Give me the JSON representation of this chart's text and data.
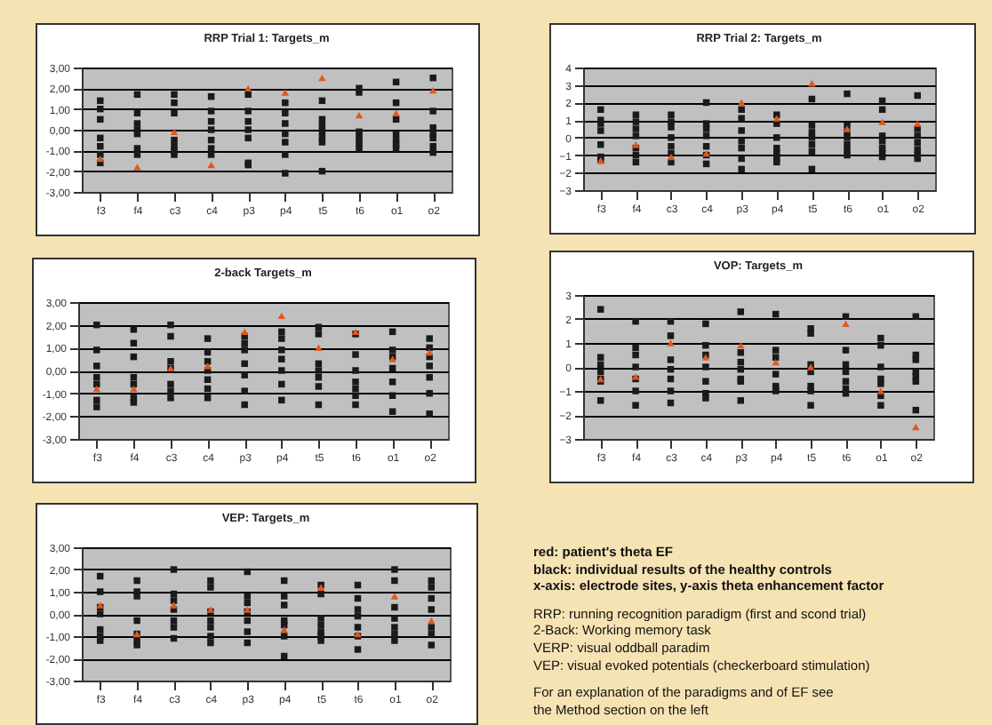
{
  "chart_data": [
    {
      "type": "scatter",
      "title": "RRP Trial 1: Targets_m",
      "categories": [
        "f3",
        "f4",
        "c3",
        "c4",
        "p3",
        "p4",
        "t5",
        "t6",
        "o1",
        "o2"
      ],
      "ylim": [
        -3,
        3
      ],
      "yticks": [
        {
          "value": -3,
          "label": "-3,00"
        },
        {
          "value": -2,
          "label": "-2,00"
        },
        {
          "value": -1,
          "label": "-1,00"
        },
        {
          "value": 0,
          "label": "0,00"
        },
        {
          "value": 1,
          "label": "1,00"
        },
        {
          "value": 2,
          "label": "2,00"
        },
        {
          "value": 3,
          "label": "3,00"
        }
      ],
      "grid": "y",
      "series": [
        {
          "color": "#1a1a1a",
          "marker": "square",
          "x": [
            "f3",
            "f3",
            "f3",
            "f3",
            "f3",
            "f3",
            "f3",
            "f4",
            "f4",
            "f4",
            "f4",
            "f4",
            "f4",
            "f4",
            "c3",
            "c3",
            "c3",
            "c3",
            "c3",
            "c3",
            "c3",
            "c4",
            "c4",
            "c4",
            "c4",
            "c4",
            "c4",
            "c4",
            "p3",
            "p3",
            "p3",
            "p3",
            "p3",
            "p3",
            "p3",
            "p4",
            "p4",
            "p4",
            "p4",
            "p4",
            "p4",
            "p4",
            "t5",
            "t5",
            "t5",
            "t5",
            "t5",
            "t5",
            "t5",
            "t6",
            "t6",
            "t6",
            "t6",
            "t6",
            "t6",
            "t6",
            "o1",
            "o1",
            "o1",
            "o1",
            "o1",
            "o1",
            "o1",
            "o2",
            "o2",
            "o2",
            "o2",
            "o2",
            "o2",
            "o2"
          ],
          "values": [
            1.4,
            1.0,
            0.5,
            -0.4,
            -0.8,
            -1.2,
            -1.6,
            1.7,
            0.8,
            0.3,
            0.0,
            -0.2,
            -0.9,
            -1.2,
            1.7,
            1.3,
            0.8,
            -0.5,
            -0.8,
            -1.0,
            -1.2,
            1.6,
            0.9,
            0.4,
            0.0,
            -0.5,
            -0.9,
            -1.2,
            1.7,
            0.9,
            0.4,
            0.0,
            -0.4,
            -1.6,
            -1.7,
            1.3,
            0.8,
            0.3,
            -0.2,
            -0.6,
            -1.2,
            -2.1,
            1.4,
            0.5,
            0.2,
            -0.1,
            -0.4,
            -0.6,
            -2.0,
            2.0,
            1.8,
            -0.1,
            -0.3,
            -0.5,
            -0.7,
            -0.9,
            2.3,
            1.3,
            0.5,
            -0.2,
            -0.5,
            -0.7,
            -0.9,
            2.5,
            0.9,
            0.1,
            -0.2,
            -0.4,
            -0.8,
            -1.1
          ]
        },
        {
          "color": "#e0581c",
          "marker": "triangle",
          "values": [
            -1.4,
            -1.8,
            -0.1,
            -1.7,
            2.0,
            1.8,
            2.5,
            0.7,
            0.8,
            1.9
          ]
        }
      ]
    },
    {
      "type": "scatter",
      "title": "RRP Trial 2: Targets_m",
      "categories": [
        "f3",
        "f4",
        "c3",
        "c4",
        "p3",
        "p4",
        "t5",
        "t6",
        "o1",
        "o2"
      ],
      "ylim": [
        -3,
        4
      ],
      "yticks": [
        -3,
        -2,
        -1,
        0,
        1,
        2,
        3,
        4
      ],
      "grid": "y",
      "series": [
        {
          "color": "#1a1a1a",
          "marker": "square",
          "x": [
            "f3",
            "f3",
            "f3",
            "f3",
            "f3",
            "f3",
            "f3",
            "f4",
            "f4",
            "f4",
            "f4",
            "f4",
            "f4",
            "f4",
            "c3",
            "c3",
            "c3",
            "c3",
            "c3",
            "c3",
            "c3",
            "c4",
            "c4",
            "c4",
            "c4",
            "c4",
            "c4",
            "c4",
            "p3",
            "p3",
            "p3",
            "p3",
            "p3",
            "p3",
            "p3",
            "p4",
            "p4",
            "p4",
            "p4",
            "p4",
            "p4",
            "p4",
            "t5",
            "t5",
            "t5",
            "t5",
            "t5",
            "t5",
            "t5",
            "t6",
            "t6",
            "t6",
            "t6",
            "t6",
            "t6",
            "t6",
            "o1",
            "o1",
            "o1",
            "o1",
            "o1",
            "o1",
            "o1",
            "o2",
            "o2",
            "o2",
            "o2",
            "o2",
            "o2",
            "o2"
          ],
          "values": [
            1.6,
            1.0,
            0.8,
            0.4,
            -0.4,
            -1.1,
            -1.3,
            1.3,
            0.9,
            0.5,
            0.1,
            -0.6,
            -1.0,
            -1.4,
            1.3,
            0.9,
            0.6,
            0.0,
            -0.5,
            -0.9,
            -1.4,
            2.0,
            0.8,
            0.5,
            0.1,
            -0.5,
            -1.0,
            -1.5,
            1.6,
            1.1,
            0.4,
            -0.2,
            -0.6,
            -1.2,
            -1.8,
            1.3,
            0.8,
            0.0,
            -0.6,
            -0.9,
            -1.2,
            -1.4,
            2.2,
            0.7,
            0.3,
            0.0,
            -0.4,
            -0.8,
            -1.8,
            2.5,
            0.7,
            0.3,
            0.0,
            -0.4,
            -0.7,
            -1.0,
            2.1,
            1.6,
            0.1,
            -0.2,
            -0.6,
            -0.9,
            -1.1,
            2.4,
            0.5,
            0.1,
            -0.3,
            -0.7,
            -1.0,
            -1.2
          ]
        },
        {
          "color": "#e0581c",
          "marker": "triangle",
          "values": [
            -1.3,
            -0.4,
            -1.1,
            -0.9,
            2.0,
            1.1,
            3.1,
            0.5,
            0.9,
            0.8
          ]
        }
      ]
    },
    {
      "type": "scatter",
      "title": "2-back Targets_m",
      "categories": [
        "f3",
        "f4",
        "c3",
        "c4",
        "p3",
        "p4",
        "t5",
        "t6",
        "o1",
        "o2"
      ],
      "ylim": [
        -3,
        3
      ],
      "yticks": [
        {
          "value": -3,
          "label": "-3,00"
        },
        {
          "value": -2,
          "label": "-2,00"
        },
        {
          "value": -1,
          "label": "-1,00"
        },
        {
          "value": 0,
          "label": "0,00"
        },
        {
          "value": 1,
          "label": "1,00"
        },
        {
          "value": 2,
          "label": "2,00"
        },
        {
          "value": 3,
          "label": "3,00"
        }
      ],
      "grid": "y",
      "series": [
        {
          "color": "#1a1a1a",
          "marker": "square",
          "x": [
            "f3",
            "f3",
            "f3",
            "f3",
            "f3",
            "f3",
            "f3",
            "f4",
            "f4",
            "f4",
            "f4",
            "f4",
            "f4",
            "f4",
            "c3",
            "c3",
            "c3",
            "c3",
            "c3",
            "c3",
            "c3",
            "c4",
            "c4",
            "c4",
            "c4",
            "c4",
            "c4",
            "c4",
            "p3",
            "p3",
            "p3",
            "p3",
            "p3",
            "p3",
            "p3",
            "p4",
            "p4",
            "p4",
            "p4",
            "p4",
            "p4",
            "p4",
            "t5",
            "t5",
            "t5",
            "t5",
            "t5",
            "t5",
            "t5",
            "t6",
            "t6",
            "t6",
            "t6",
            "t6",
            "t6",
            "t6",
            "o1",
            "o1",
            "o1",
            "o1",
            "o1",
            "o1",
            "o1",
            "o2",
            "o2",
            "o2",
            "o2",
            "o2",
            "o2",
            "o2"
          ],
          "values": [
            2.0,
            0.9,
            0.2,
            -0.3,
            -0.6,
            -1.3,
            -1.6,
            1.8,
            1.2,
            0.6,
            -0.3,
            -0.6,
            -1.2,
            -1.4,
            2.0,
            1.5,
            0.4,
            0.1,
            -0.6,
            -0.9,
            -1.2,
            1.4,
            0.8,
            0.4,
            0.0,
            -0.4,
            -0.8,
            -1.2,
            1.5,
            1.2,
            0.9,
            0.3,
            -0.2,
            -0.9,
            -1.5,
            1.7,
            1.4,
            0.9,
            0.5,
            0.0,
            -0.6,
            -1.3,
            1.9,
            1.6,
            0.3,
            0.0,
            -0.3,
            -0.7,
            -1.5,
            1.6,
            0.7,
            0.0,
            -0.5,
            -0.8,
            -1.1,
            -1.5,
            1.7,
            0.9,
            0.6,
            0.1,
            -0.5,
            -1.1,
            -1.8,
            1.4,
            1.0,
            0.6,
            0.2,
            -0.3,
            -1.0,
            -1.9
          ]
        },
        {
          "color": "#e0581c",
          "marker": "triangle",
          "values": [
            -0.8,
            -0.8,
            0.1,
            0.2,
            1.7,
            2.4,
            1.0,
            1.7,
            0.5,
            0.8
          ]
        }
      ]
    },
    {
      "type": "scatter",
      "title": "VOP: Targets_m",
      "categories": [
        "f3",
        "f4",
        "c3",
        "c4",
        "p3",
        "p4",
        "t5",
        "t6",
        "o1",
        "o2"
      ],
      "ylim": [
        -3,
        3
      ],
      "yticks": [
        -3,
        -2,
        -1,
        0,
        1,
        2,
        3
      ],
      "grid": "y",
      "series": [
        {
          "color": "#1a1a1a",
          "marker": "square",
          "x": [
            "f3",
            "f3",
            "f3",
            "f3",
            "f3",
            "f3",
            "f3",
            "f4",
            "f4",
            "f4",
            "f4",
            "f4",
            "f4",
            "f4",
            "c3",
            "c3",
            "c3",
            "c3",
            "c3",
            "c3",
            "c3",
            "c4",
            "c4",
            "c4",
            "c4",
            "c4",
            "c4",
            "c4",
            "p3",
            "p3",
            "p3",
            "p3",
            "p3",
            "p3",
            "p3",
            "p4",
            "p4",
            "p4",
            "p4",
            "p4",
            "p4",
            "p4",
            "t5",
            "t5",
            "t5",
            "t5",
            "t5",
            "t5",
            "t5",
            "t6",
            "t6",
            "t6",
            "t6",
            "t6",
            "t6",
            "t6",
            "o1",
            "o1",
            "o1",
            "o1",
            "o1",
            "o1",
            "o1",
            "o2",
            "o2",
            "o2",
            "o2",
            "o2",
            "o2",
            "o2"
          ],
          "values": [
            2.4,
            0.4,
            0.1,
            -0.2,
            -0.5,
            -0.6,
            -1.4,
            1.9,
            0.8,
            0.5,
            0.0,
            -0.5,
            -1.0,
            -1.6,
            1.9,
            1.3,
            0.3,
            -0.1,
            -0.5,
            -1.0,
            -1.5,
            1.8,
            0.9,
            0.5,
            0.0,
            -0.6,
            -1.1,
            -1.3,
            2.3,
            0.6,
            0.2,
            -0.1,
            -0.5,
            -0.6,
            -1.4,
            2.2,
            0.7,
            0.4,
            -0.3,
            -0.8,
            -0.9,
            -1.0,
            1.6,
            1.4,
            0.1,
            -0.2,
            -0.8,
            -1.0,
            -1.6,
            2.1,
            0.7,
            0.1,
            -0.2,
            -0.6,
            -0.9,
            -1.1,
            1.2,
            0.9,
            0.0,
            -0.5,
            -0.7,
            -1.2,
            -1.6,
            2.1,
            0.5,
            0.3,
            -0.2,
            -0.4,
            -0.6,
            -1.8
          ]
        },
        {
          "color": "#e0581c",
          "marker": "triangle",
          "values": [
            -0.5,
            -0.4,
            1.0,
            0.4,
            0.9,
            0.2,
            0.0,
            1.8,
            -1.0,
            -2.5
          ]
        }
      ]
    },
    {
      "type": "scatter",
      "title": "VEP: Targets_m",
      "categories": [
        "f3",
        "f4",
        "c3",
        "c4",
        "p3",
        "p4",
        "t5",
        "t6",
        "o1",
        "o2"
      ],
      "ylim": [
        -3,
        3
      ],
      "yticks": [
        {
          "value": -3,
          "label": "-3,00"
        },
        {
          "value": -2,
          "label": "-2,00"
        },
        {
          "value": -1,
          "label": "-1,00"
        },
        {
          "value": 0,
          "label": "0,00"
        },
        {
          "value": 1,
          "label": "1,00"
        },
        {
          "value": 2,
          "label": "2,00"
        },
        {
          "value": 3,
          "label": "3,00"
        }
      ],
      "grid": "y",
      "series": [
        {
          "color": "#1a1a1a",
          "marker": "square",
          "x": [
            "f3",
            "f3",
            "f3",
            "f3",
            "f3",
            "f3",
            "f3",
            "f4",
            "f4",
            "f4",
            "f4",
            "f4",
            "f4",
            "f4",
            "c3",
            "c3",
            "c3",
            "c3",
            "c3",
            "c3",
            "c3",
            "c4",
            "c4",
            "c4",
            "c4",
            "c4",
            "c4",
            "c4",
            "p3",
            "p3",
            "p3",
            "p3",
            "p3",
            "p3",
            "p3",
            "p4",
            "p4",
            "p4",
            "p4",
            "p4",
            "p4",
            "p4",
            "t5",
            "t5",
            "t5",
            "t5",
            "t5",
            "t5",
            "t5",
            "t6",
            "t6",
            "t6",
            "t6",
            "t6",
            "t6",
            "t6",
            "o1",
            "o1",
            "o1",
            "o1",
            "o1",
            "o1",
            "o1",
            "o2",
            "o2",
            "o2",
            "o2",
            "o2",
            "o2",
            "o2"
          ],
          "values": [
            1.7,
            1.0,
            0.3,
            0.0,
            -0.7,
            -1.0,
            -1.2,
            1.5,
            1.0,
            0.8,
            -0.3,
            -0.9,
            -1.2,
            -1.4,
            2.0,
            0.9,
            0.6,
            0.2,
            -0.3,
            -0.6,
            -1.1,
            1.5,
            1.2,
            0.1,
            -0.3,
            -0.6,
            -1.0,
            -1.3,
            1.9,
            0.8,
            0.5,
            0.1,
            -0.3,
            -0.8,
            -1.3,
            1.5,
            0.8,
            0.4,
            -0.3,
            -0.5,
            -1.0,
            -1.9,
            1.3,
            0.9,
            -0.2,
            -0.5,
            -0.8,
            -1.0,
            -1.2,
            1.3,
            0.7,
            0.2,
            -0.1,
            -0.6,
            -1.0,
            -1.6,
            2.0,
            1.5,
            0.3,
            -0.2,
            -0.6,
            -0.9,
            -1.2,
            1.5,
            1.2,
            0.7,
            0.2,
            -0.6,
            -0.9,
            -1.4
          ]
        },
        {
          "color": "#e0581c",
          "marker": "triangle",
          "values": [
            0.4,
            -0.9,
            0.4,
            0.2,
            0.2,
            -0.7,
            1.2,
            -0.9,
            0.8,
            -0.3
          ]
        }
      ]
    },
    {
      "type": "other",
      "annotations": [
        "red: patient's theta EF",
        "black: individual results of the healthy controls",
        "x-axis: electrode sites, y-axis theta enhancement factor",
        "RRP: running recognition paradigm (first and scond trial)",
        "2-Back: Working memory task",
        "VERP: visual oddball paradim",
        "VEP: visual evoked potentials (checkerboard stimulation)",
        "For an explanation of the paradigms and of EF see the Method section on the left"
      ]
    }
  ]
}
